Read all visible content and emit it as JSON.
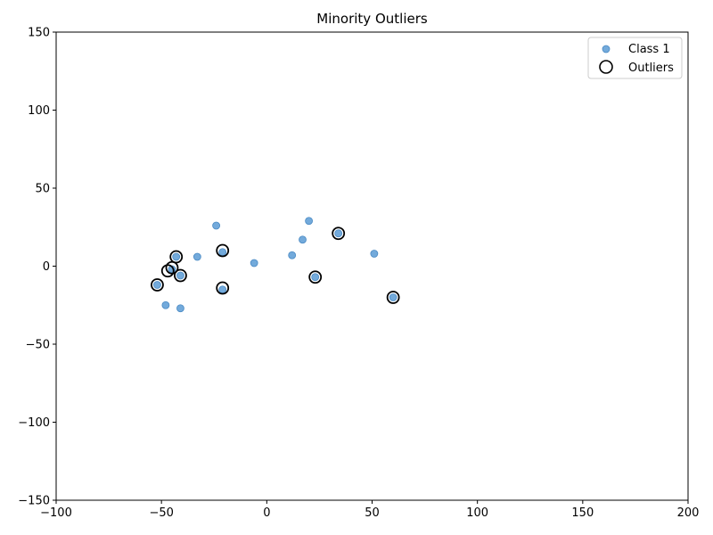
{
  "chart_data": {
    "type": "scatter",
    "title": "Minority Outliers",
    "xlabel": "",
    "ylabel": "",
    "xlim": [
      -100,
      200
    ],
    "ylim": [
      -150,
      150
    ],
    "xticks": [
      -100,
      -50,
      0,
      50,
      100,
      150,
      200
    ],
    "yticks": [
      -150,
      -100,
      -50,
      0,
      50,
      100,
      150
    ],
    "xtick_labels": [
      "−100",
      "−50",
      "0",
      "50",
      "100",
      "150",
      "200"
    ],
    "ytick_labels": [
      "−150",
      "−100",
      "−50",
      "0",
      "50",
      "100",
      "150"
    ],
    "grid": false,
    "legend_position": "top-right",
    "series": [
      {
        "name": "Class 1",
        "marker": "filled-circle",
        "color": "#5b9bd5",
        "points": [
          {
            "x": -24,
            "y": 26
          },
          {
            "x": 20,
            "y": 29
          },
          {
            "x": 17,
            "y": 17
          },
          {
            "x": 34,
            "y": 21
          },
          {
            "x": 51,
            "y": 8
          },
          {
            "x": 12,
            "y": 7
          },
          {
            "x": -6,
            "y": 2
          },
          {
            "x": -21,
            "y": 9
          },
          {
            "x": -33,
            "y": 6
          },
          {
            "x": -43,
            "y": 6
          },
          {
            "x": -45,
            "y": -2
          },
          {
            "x": -41,
            "y": -6
          },
          {
            "x": -52,
            "y": -12
          },
          {
            "x": -21,
            "y": -15
          },
          {
            "x": 23,
            "y": -7
          },
          {
            "x": 60,
            "y": -20
          },
          {
            "x": -48,
            "y": -25
          },
          {
            "x": -41,
            "y": -27
          }
        ]
      },
      {
        "name": "Outliers",
        "marker": "hollow-circle",
        "color": "#000000",
        "points": [
          {
            "x": -21,
            "y": 10
          },
          {
            "x": 34,
            "y": 21
          },
          {
            "x": -43,
            "y": 6
          },
          {
            "x": -45,
            "y": -1
          },
          {
            "x": -47,
            "y": -3
          },
          {
            "x": -41,
            "y": -6
          },
          {
            "x": -52,
            "y": -12
          },
          {
            "x": -21,
            "y": -14
          },
          {
            "x": 23,
            "y": -7
          },
          {
            "x": 60,
            "y": -20
          }
        ]
      }
    ]
  }
}
